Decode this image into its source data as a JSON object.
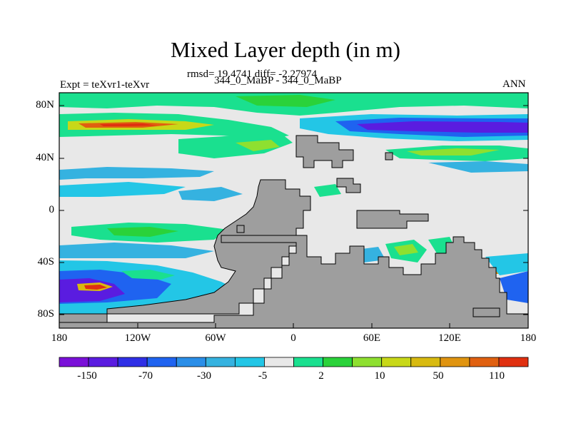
{
  "title": "Mixed Layer depth (in m)",
  "stats": "rmsd= 19.4741 diff= -2.27974",
  "experiment": "Expt = teXvr1-teXvr",
  "period": "344_0_MaBP - 344_0_MaBP",
  "season": "ANN",
  "y_ticks": [
    "80N",
    "40N",
    "0",
    "40S",
    "80S"
  ],
  "x_ticks": [
    "180",
    "120W",
    "60W",
    "0",
    "60E",
    "120E",
    "180"
  ],
  "colorbar": {
    "labels": [
      "-150",
      "-70",
      "-30",
      "-5",
      "2",
      "10",
      "50",
      "110"
    ],
    "colors": [
      "#7a10d8",
      "#5a1ce0",
      "#2f2fe6",
      "#1f63f0",
      "#2a8ee8",
      "#35b2e0",
      "#23c6e6",
      "#e8e8e8",
      "#1ae08f",
      "#2ad23a",
      "#8ee030",
      "#c8d818",
      "#d8ba10",
      "#e09410",
      "#e06010",
      "#e03010"
    ]
  },
  "colors": {
    "land": "#9e9e9e",
    "neutral": "#e8e8e8",
    "positive_light": "#1ae08f",
    "positive_mid": "#2ad23a",
    "negative_light": "#35b2e0",
    "negative_deep": "#5a1ce0",
    "max_positive": "#e03010"
  }
}
